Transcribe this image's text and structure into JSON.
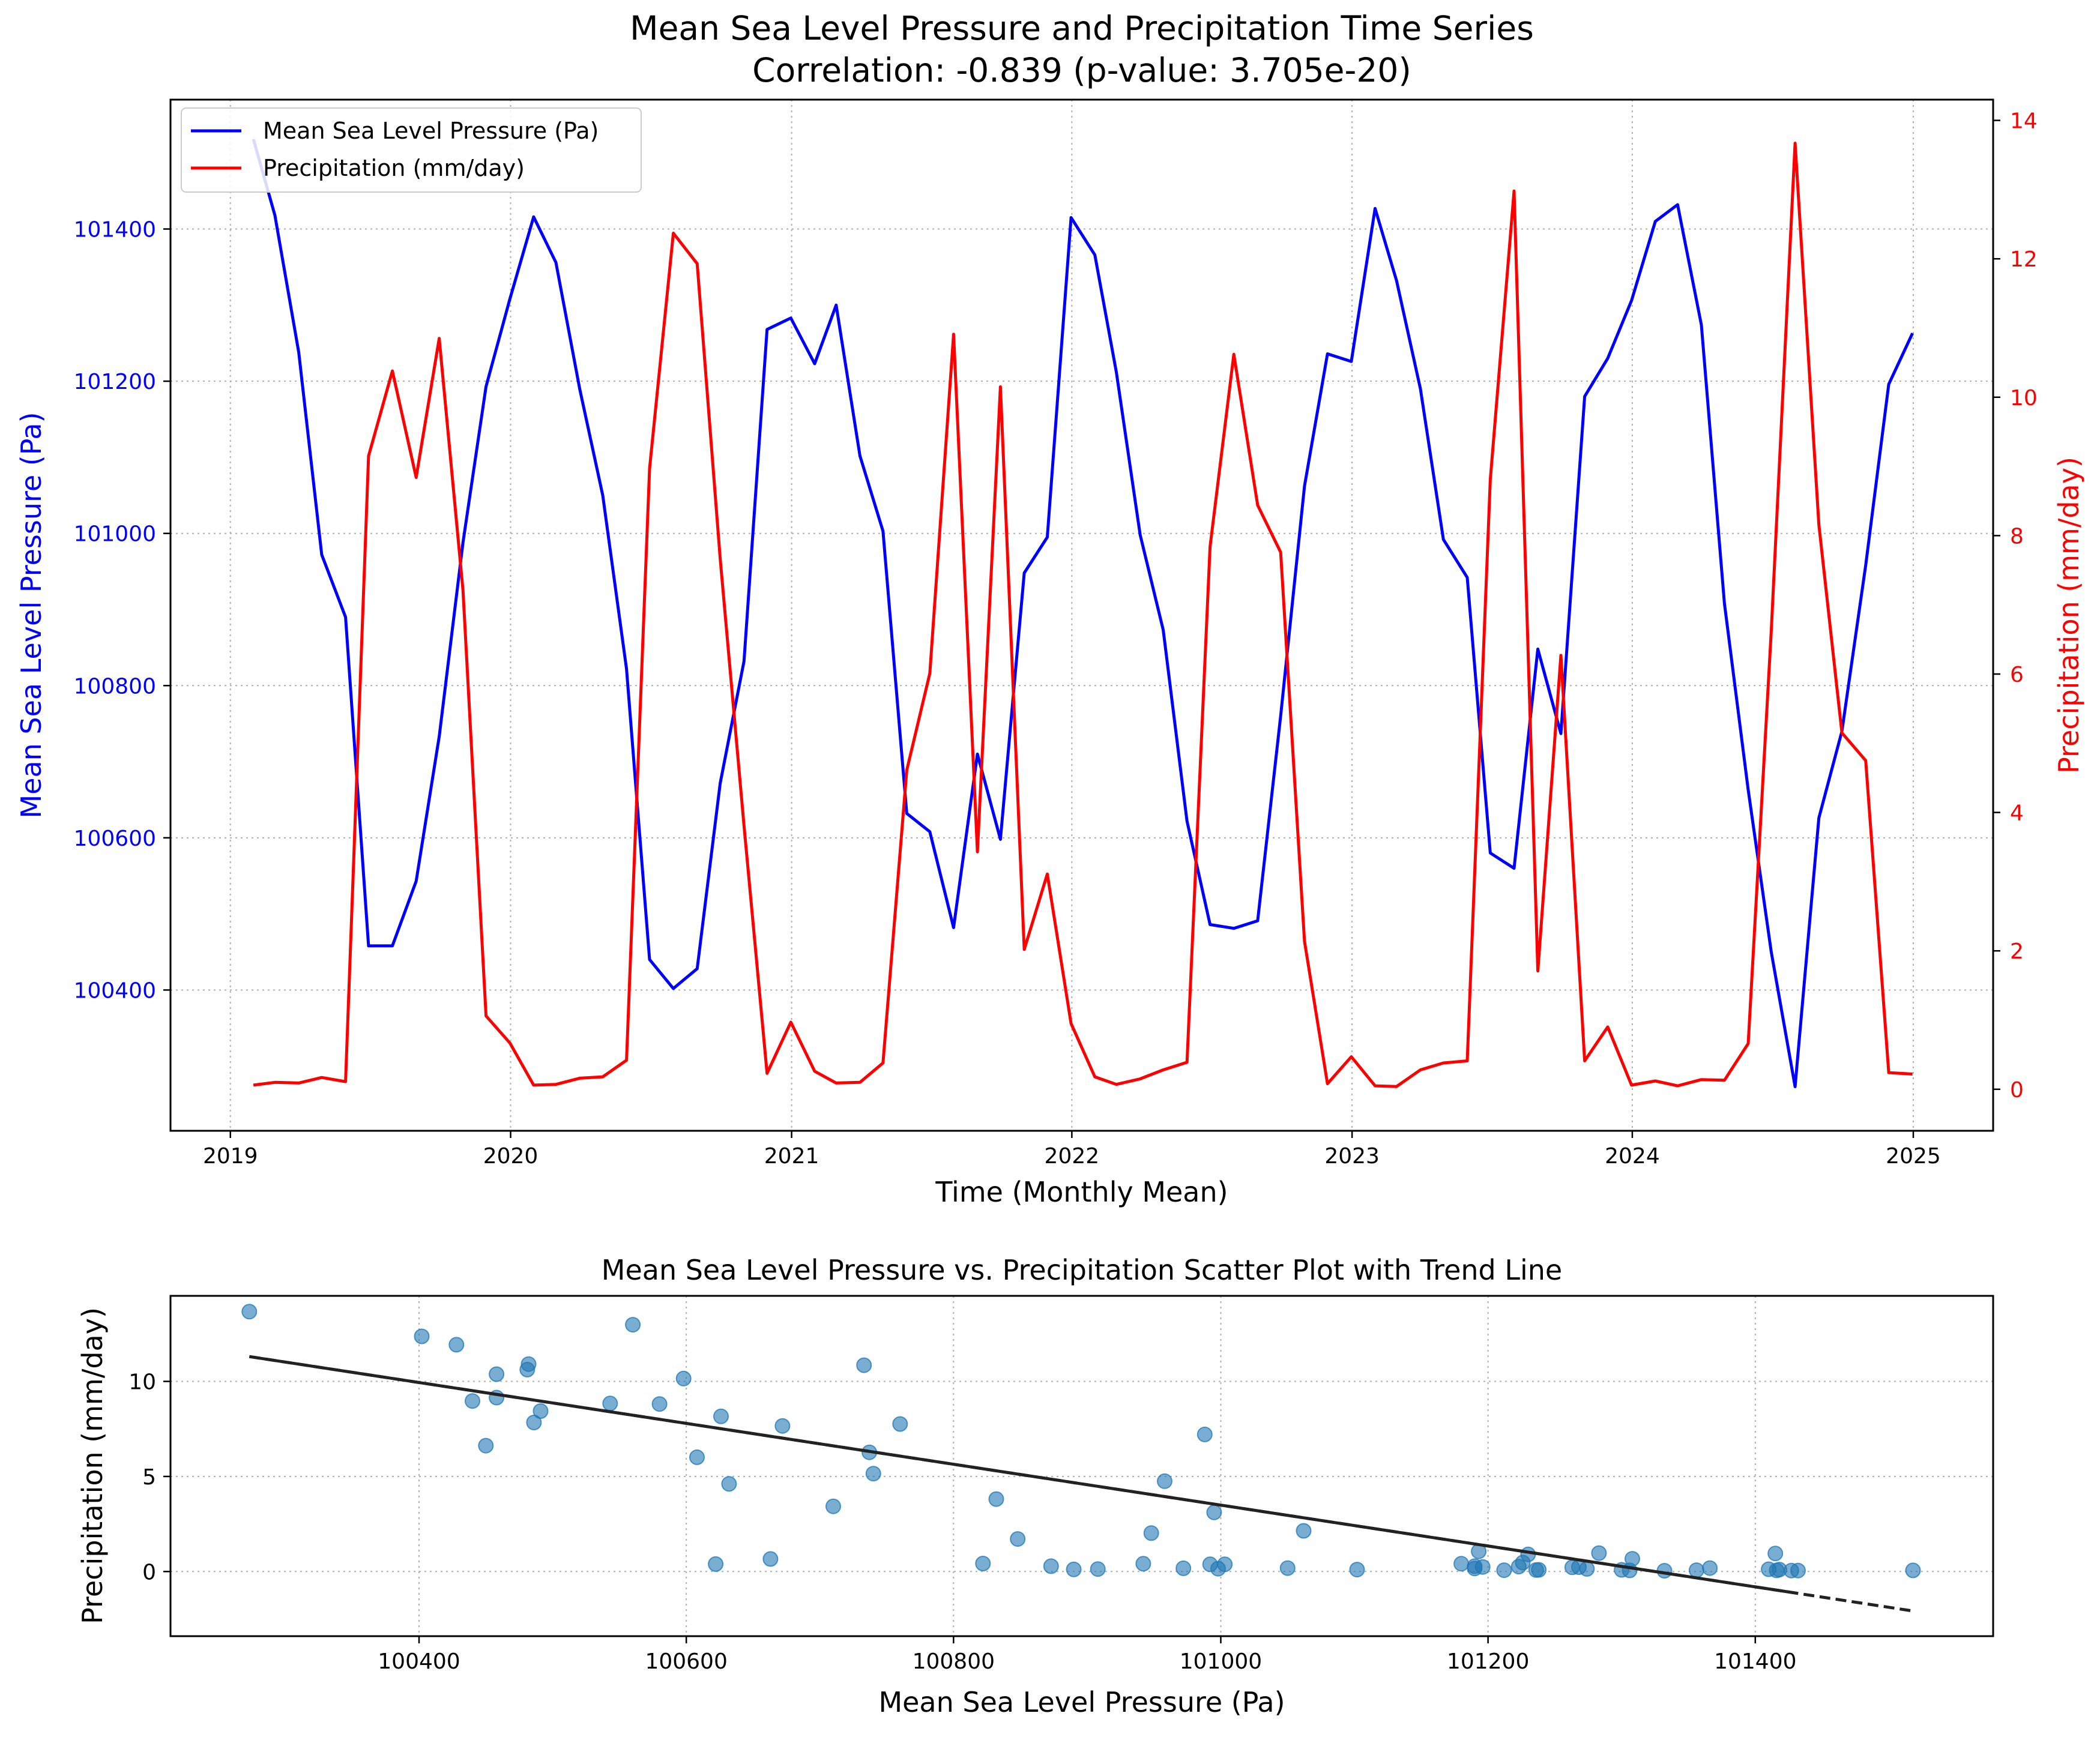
{
  "colors": {
    "pressure": "#0000ff",
    "precip": "#ff0000",
    "scatter": "#1f77b4",
    "trend": "#222222",
    "grid": "#b0b0b0"
  },
  "chart_data": [
    {
      "type": "line",
      "title": "Mean Sea Level Pressure and Precipitation Time Series",
      "subtitle": "Correlation: -0.839 (p-value: 3.705e-20)",
      "xlabel": "Time (Monthly Mean)",
      "ylabel_left": "Mean Sea Level Pressure (Pa)",
      "ylabel_right": "Precipitation (mm/day)",
      "xlim": [
        "2018-10-15",
        "2025-04-15"
      ],
      "ylim_left": [
        100215,
        101570
      ],
      "ylim_right": [
        -0.6,
        14.3
      ],
      "x_ticks": [
        "2019",
        "2020",
        "2021",
        "2022",
        "2023",
        "2024",
        "2025"
      ],
      "y_ticks_left": [
        "100400",
        "100600",
        "100800",
        "101000",
        "101200",
        "101400"
      ],
      "y_ticks_right": [
        "0",
        "2",
        "4",
        "6",
        "8",
        "10",
        "12",
        "14"
      ],
      "grid": true,
      "legend_position": "top-left",
      "x": [
        "2019-01-31",
        "2019-02-28",
        "2019-03-31",
        "2019-04-30",
        "2019-05-31",
        "2019-06-30",
        "2019-07-31",
        "2019-08-31",
        "2019-09-30",
        "2019-10-31",
        "2019-11-30",
        "2019-12-31",
        "2020-01-31",
        "2020-02-29",
        "2020-03-31",
        "2020-04-30",
        "2020-05-31",
        "2020-06-30",
        "2020-07-31",
        "2020-08-31",
        "2020-09-30",
        "2020-10-31",
        "2020-11-30",
        "2020-12-31",
        "2021-01-31",
        "2021-02-28",
        "2021-03-31",
        "2021-04-30",
        "2021-05-31",
        "2021-06-30",
        "2021-07-31",
        "2021-08-31",
        "2021-09-30",
        "2021-10-31",
        "2021-11-30",
        "2021-12-31",
        "2022-01-31",
        "2022-02-28",
        "2022-03-31",
        "2022-04-30",
        "2022-05-31",
        "2022-06-30",
        "2022-07-31",
        "2022-08-31",
        "2022-09-30",
        "2022-10-31",
        "2022-11-30",
        "2022-12-31",
        "2023-01-31",
        "2023-02-28",
        "2023-03-31",
        "2023-04-30",
        "2023-05-31",
        "2023-06-30",
        "2023-07-31",
        "2023-08-31",
        "2023-09-30",
        "2023-10-31",
        "2023-11-30",
        "2023-12-31",
        "2024-01-31",
        "2024-02-29",
        "2024-03-31",
        "2024-04-30",
        "2024-05-31",
        "2024-06-30",
        "2024-07-31",
        "2024-08-31",
        "2024-09-30",
        "2024-10-31",
        "2024-11-30",
        "2024-12-31"
      ],
      "series": [
        {
          "name": "Mean Sea Level Pressure (Pa)",
          "axis": "left",
          "values": [
            101518,
            101418,
            101238,
            100972,
            100890,
            100458,
            100458,
            100543,
            100733,
            100988,
            101193,
            101308,
            101416,
            101356,
            101190,
            101050,
            100822,
            100440,
            100402,
            100428,
            100672,
            100832,
            101268,
            101283,
            101223,
            101300,
            101102,
            101003,
            100632,
            100608,
            100482,
            100710,
            100598,
            100948,
            100995,
            101415,
            101366,
            101212,
            100998,
            100873,
            100622,
            100486,
            100481,
            100491,
            100760,
            101062,
            101236,
            101226,
            101427,
            101332,
            101190,
            100992,
            100942,
            100580,
            100560,
            100848,
            100737,
            101180,
            101230,
            101306,
            101410,
            101432,
            101274,
            100908,
            100663,
            100450,
            100273,
            100626,
            100740,
            100958,
            101196,
            101263
          ]
        },
        {
          "name": "Precipitation (mm/day)",
          "axis": "right",
          "values": [
            0.06,
            0.1,
            0.09,
            0.17,
            0.11,
            9.15,
            10.38,
            8.84,
            10.85,
            7.21,
            1.06,
            0.67,
            0.06,
            0.07,
            0.16,
            0.18,
            0.42,
            8.97,
            12.37,
            11.93,
            7.66,
            3.81,
            0.23,
            0.97,
            0.26,
            0.09,
            0.1,
            0.38,
            4.61,
            6.01,
            10.91,
            3.43,
            10.15,
            2.02,
            3.11,
            0.95,
            0.18,
            0.07,
            0.15,
            0.28,
            0.39,
            7.84,
            10.62,
            8.44,
            7.76,
            2.14,
            0.08,
            0.47,
            0.05,
            0.04,
            0.28,
            0.38,
            0.41,
            8.81,
            12.98,
            1.71,
            6.27,
            0.41,
            0.9,
            0.06,
            0.12,
            0.05,
            0.14,
            0.13,
            0.66,
            6.62,
            13.67,
            8.16,
            5.15,
            4.75,
            0.24,
            0.22
          ]
        }
      ]
    },
    {
      "type": "scatter",
      "title": "Mean Sea Level Pressure vs. Precipitation Scatter Plot with Trend Line",
      "xlabel": "Mean Sea Level Pressure (Pa)",
      "ylabel": "Precipitation (mm/day)",
      "xlim": [
        100214,
        101578
      ],
      "ylim": [
        -3.4,
        14.5
      ],
      "x_ticks": [
        "100400",
        "100600",
        "100800",
        "101000",
        "101200",
        "101400"
      ],
      "y_ticks": [
        "0",
        "5",
        "10"
      ],
      "grid": true,
      "trend_line": {
        "slope": -0.010748,
        "intercept": 1089.04,
        "x_range": [
          100273,
          101518
        ]
      },
      "points": [
        [
          101518,
          0.06
        ],
        [
          101418,
          0.1
        ],
        [
          101238,
          0.09
        ],
        [
          100972,
          0.17
        ],
        [
          100890,
          0.11
        ],
        [
          100458,
          9.15
        ],
        [
          100458,
          10.38
        ],
        [
          100543,
          8.84
        ],
        [
          100733,
          10.85
        ],
        [
          100988,
          7.21
        ],
        [
          101193,
          1.06
        ],
        [
          101308,
          0.67
        ],
        [
          101416,
          0.06
        ],
        [
          101356,
          0.07
        ],
        [
          101190,
          0.16
        ],
        [
          101050,
          0.18
        ],
        [
          100822,
          0.42
        ],
        [
          100440,
          8.97
        ],
        [
          100402,
          12.37
        ],
        [
          100428,
          11.93
        ],
        [
          100672,
          7.66
        ],
        [
          100832,
          3.81
        ],
        [
          101268,
          0.23
        ],
        [
          101283,
          0.97
        ],
        [
          101223,
          0.26
        ],
        [
          101300,
          0.09
        ],
        [
          101102,
          0.1
        ],
        [
          101003,
          0.38
        ],
        [
          100632,
          4.61
        ],
        [
          100608,
          6.01
        ],
        [
          100482,
          10.91
        ],
        [
          100710,
          3.43
        ],
        [
          100598,
          10.15
        ],
        [
          100948,
          2.02
        ],
        [
          100995,
          3.11
        ],
        [
          101415,
          0.95
        ],
        [
          101366,
          0.18
        ],
        [
          101212,
          0.07
        ],
        [
          100998,
          0.15
        ],
        [
          100873,
          0.28
        ],
        [
          100622,
          0.39
        ],
        [
          100486,
          7.84
        ],
        [
          100481,
          10.62
        ],
        [
          100491,
          8.44
        ],
        [
          100760,
          7.76
        ],
        [
          101062,
          2.14
        ],
        [
          101236,
          0.08
        ],
        [
          101226,
          0.47
        ],
        [
          101427,
          0.05
        ],
        [
          101332,
          0.04
        ],
        [
          101190,
          0.28
        ],
        [
          100992,
          0.38
        ],
        [
          100942,
          0.41
        ],
        [
          100580,
          8.81
        ],
        [
          100560,
          12.98
        ],
        [
          100848,
          1.71
        ],
        [
          100737,
          6.27
        ],
        [
          101180,
          0.41
        ],
        [
          101230,
          0.9
        ],
        [
          101306,
          0.06
        ],
        [
          101410,
          0.12
        ],
        [
          101432,
          0.05
        ],
        [
          101274,
          0.14
        ],
        [
          100908,
          0.13
        ],
        [
          100663,
          0.66
        ],
        [
          100450,
          6.62
        ],
        [
          100273,
          13.67
        ],
        [
          100626,
          8.16
        ],
        [
          100740,
          5.15
        ],
        [
          100958,
          4.75
        ],
        [
          101196,
          0.24
        ],
        [
          101263,
          0.22
        ]
      ]
    }
  ]
}
